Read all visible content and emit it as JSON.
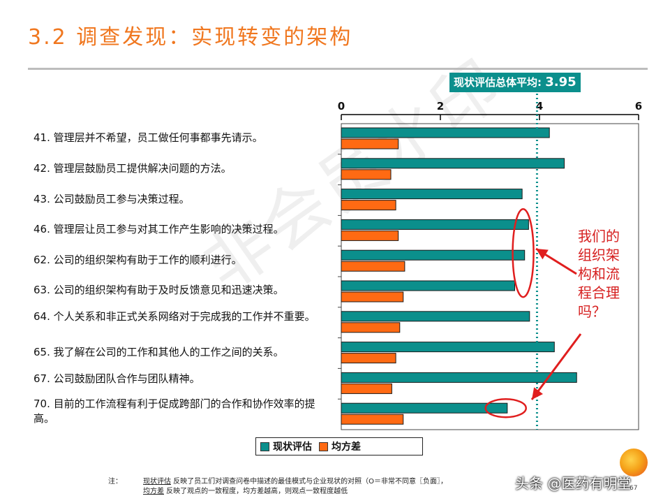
{
  "title": "3.2 调查发现：实现转变的架构",
  "avg_label": {
    "text": "现状评估总体平均: ",
    "value": "3.95"
  },
  "questions": [
    {
      "no": "41.",
      "text": "管理层并不希望，员工做任何事都事先请示。"
    },
    {
      "no": "42.",
      "text": "管理层鼓励员工提供解决问题的方法。"
    },
    {
      "no": "43.",
      "text": "公司鼓励员工参与决策过程。"
    },
    {
      "no": "46.",
      "text": "管理层让员工参与对其工作产生影响的决策过程。"
    },
    {
      "no": "62.",
      "text": "公司的组织架构有助于工作的顺利进行。"
    },
    {
      "no": "63.",
      "text": "公司的组织架构有助于及时反馈意见和迅速决策。"
    },
    {
      "no": "64.",
      "text": "个人关系和非正式关系网络对于完成我的工作并不重要。"
    },
    {
      "no": "65.",
      "text": "我了解在公司的工作和其他人的工作之间的关系。"
    },
    {
      "no": "67.",
      "text": "公司鼓励团队合作与团队精神。"
    },
    {
      "no": "70.",
      "text": "目前的工作流程有利于促成跨部门的合作和协作效率的提高。"
    }
  ],
  "callout_lines": [
    "我们的",
    "组织架",
    "构和流",
    "程合理",
    "吗？"
  ],
  "legend": {
    "current": "现状评估",
    "variance": "均方差"
  },
  "notes": {
    "label": "注：",
    "line1_term": "现状评估",
    "line1_text": " 反映了员工们对调查问卷中描述的最佳模式与企业现状的对照（O＝非常不同意〖负面〗，",
    "line2_term": "均方差",
    "line2_text": " 反映了观点的一致程度，均方差越高，则观点一致程度越低"
  },
  "watermark": "非会员水印",
  "credit": "头条 @医药有明堂",
  "page_number": "67",
  "colors": {
    "teal": "#0b8f8c",
    "orange": "#ff6a13",
    "title": "#f0771f",
    "callout": "#d62020"
  },
  "chart_data": {
    "type": "bar",
    "orientation": "horizontal",
    "categories": [
      "41",
      "42",
      "43",
      "46",
      "62",
      "63",
      "64",
      "65",
      "67",
      "70"
    ],
    "series": [
      {
        "name": "现状评估",
        "values": [
          4.2,
          4.5,
          3.65,
          3.78,
          3.7,
          3.5,
          3.8,
          4.3,
          4.75,
          3.35
        ]
      },
      {
        "name": "均方差",
        "values": [
          1.15,
          1.0,
          1.1,
          1.15,
          1.28,
          1.25,
          1.18,
          1.1,
          1.02,
          1.25
        ]
      }
    ],
    "xlim": [
      0,
      6
    ],
    "xticks": [
      "0",
      "2",
      "4",
      "6"
    ],
    "average_line": 3.95,
    "grid": false,
    "legend_position": "bottom"
  }
}
